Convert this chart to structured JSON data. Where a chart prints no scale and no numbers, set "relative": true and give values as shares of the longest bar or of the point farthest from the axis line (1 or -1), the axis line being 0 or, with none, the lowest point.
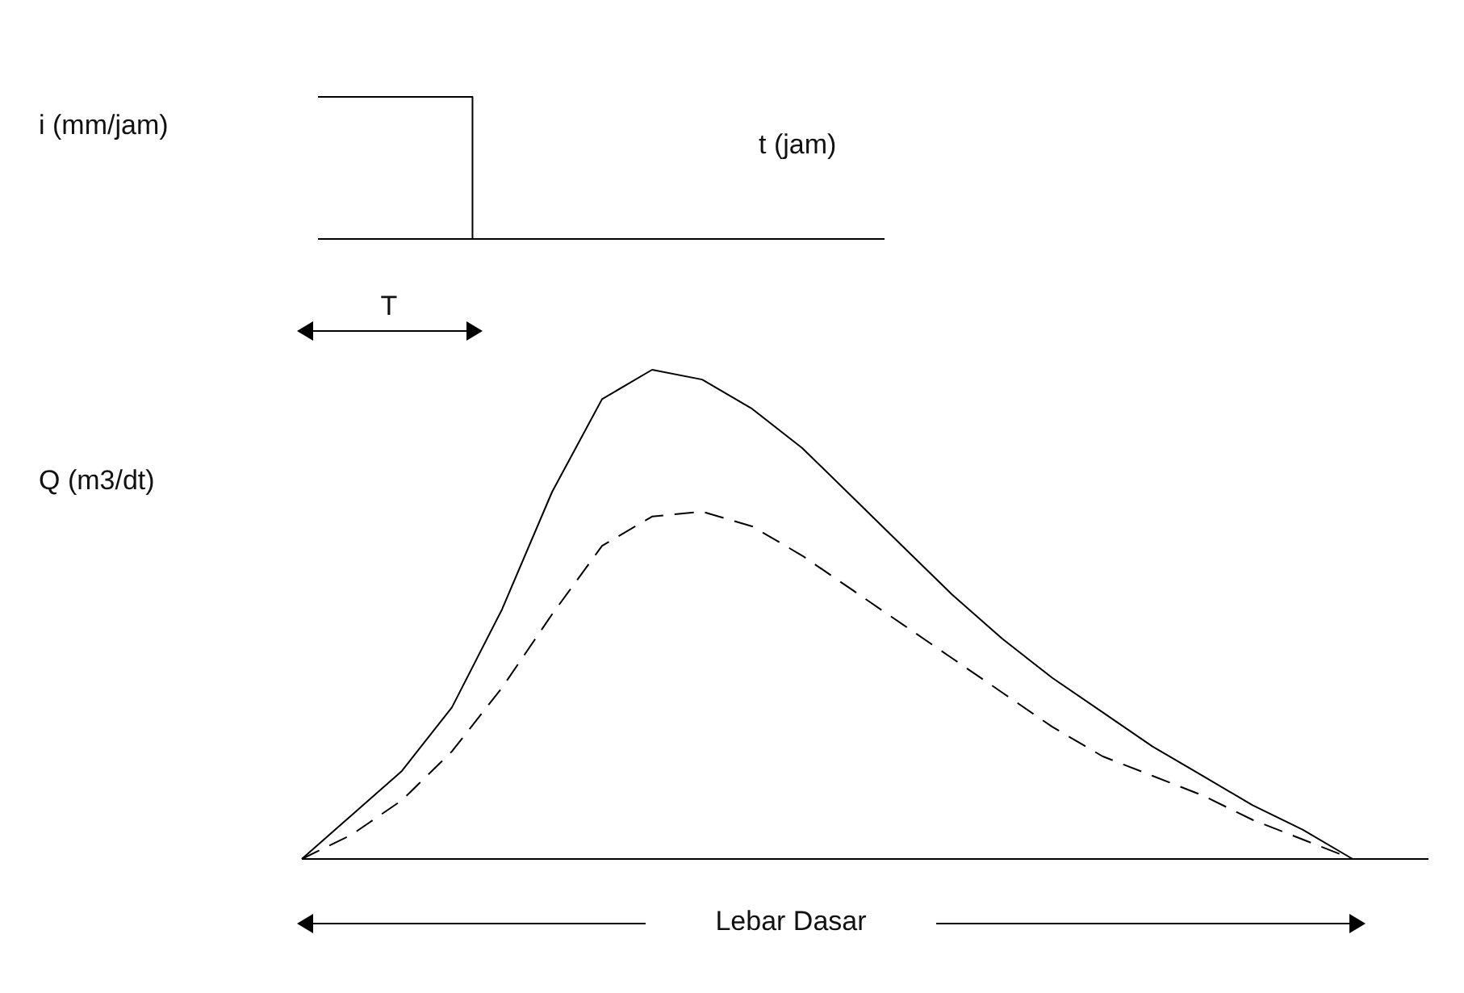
{
  "chart_data": [
    {
      "type": "step",
      "relative": true,
      "xlabel": "t (jam)",
      "ylabel": "i (mm/jam)",
      "annotations": [
        "T"
      ],
      "categories": [
        null,
        null,
        null,
        null,
        null,
        null,
        null,
        null,
        null,
        null,
        null,
        null
      ],
      "values": [
        1,
        1,
        1,
        0,
        0,
        0,
        0,
        0,
        0,
        0,
        0,
        0
      ],
      "color": "#000000"
    },
    {
      "type": "line",
      "relative": true,
      "ylabel": "Q (m3/dt)",
      "annotations": [
        "Lebar Dasar"
      ],
      "categories": [
        null,
        null,
        null,
        null,
        null,
        null,
        null,
        null,
        null,
        null,
        null,
        null,
        null,
        null,
        null,
        null,
        null,
        null,
        null,
        null,
        null,
        null,
        null
      ],
      "series": [
        {
          "color": "#000000",
          "line_style": "solid",
          "values": [
            0,
            0.09,
            0.18,
            0.31,
            0.51,
            0.75,
            0.94,
            1,
            0.98,
            0.92,
            0.84,
            0.74,
            0.64,
            0.54,
            0.45,
            0.37,
            0.3,
            0.23,
            0.17,
            0.11,
            0.06,
            0,
            null
          ]
        },
        {
          "color": "#000000",
          "line_style": "dashed",
          "values": [
            0,
            0.05,
            0.12,
            0.22,
            0.35,
            0.5,
            0.64,
            0.7,
            0.71,
            0.68,
            0.62,
            0.55,
            0.48,
            0.41,
            0.34,
            0.27,
            0.21,
            0.17,
            0.13,
            0.08,
            0.04,
            0,
            null
          ]
        }
      ]
    }
  ]
}
